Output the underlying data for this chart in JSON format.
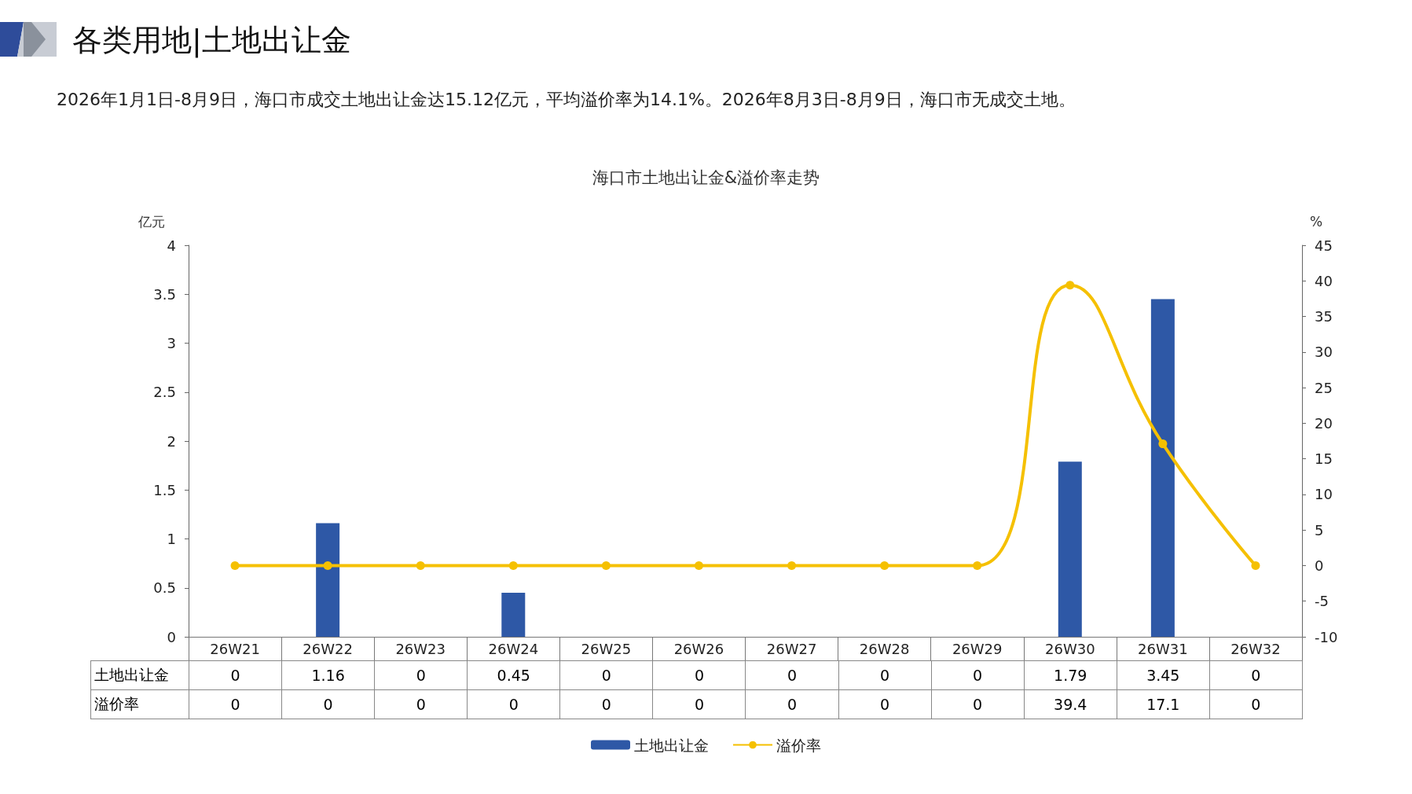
{
  "chart_data": {
    "type": "bar",
    "title": "海口市土地出让金&溢价率走势",
    "annotations": [
      "各类用地|土地出让金",
      "2026年1月1日-8月9日，海口市成交土地出让金达15.12亿元，平均溢价率为14.1%。2026年8月3日-8月9日，海口市无成交土地。"
    ],
    "ylabel": "亿元",
    "y2label": "%",
    "categories": [
      "26W21",
      "26W22",
      "26W23",
      "26W24",
      "26W25",
      "26W26",
      "26W27",
      "26W28",
      "26W29",
      "26W30",
      "26W31",
      "26W32"
    ],
    "series": [
      {
        "name": "土地出让金",
        "color": "#2e58a6",
        "values": [
          0,
          1.16,
          0,
          0.45,
          0,
          0,
          0,
          0,
          0,
          1.79,
          3.45,
          0
        ]
      },
      {
        "name": "溢价率",
        "type": "line",
        "axis": "y2",
        "color": "#f5c000",
        "values": [
          0,
          0,
          0,
          0,
          0,
          0,
          0,
          0,
          0,
          39.4,
          17.1,
          0
        ]
      }
    ],
    "ylim": [
      0,
      4
    ],
    "yticks": [
      0,
      0.5,
      1,
      1.5,
      2,
      2.5,
      3,
      3.5,
      4
    ],
    "y2lim": [
      -10,
      45
    ],
    "y2ticks": [
      -10,
      -5,
      0,
      5,
      10,
      15,
      20,
      25,
      30,
      35,
      40,
      45
    ],
    "marker": "circle",
    "line_style": "solid",
    "data_labels": true,
    "legend": "bottom",
    "grid": false
  }
}
